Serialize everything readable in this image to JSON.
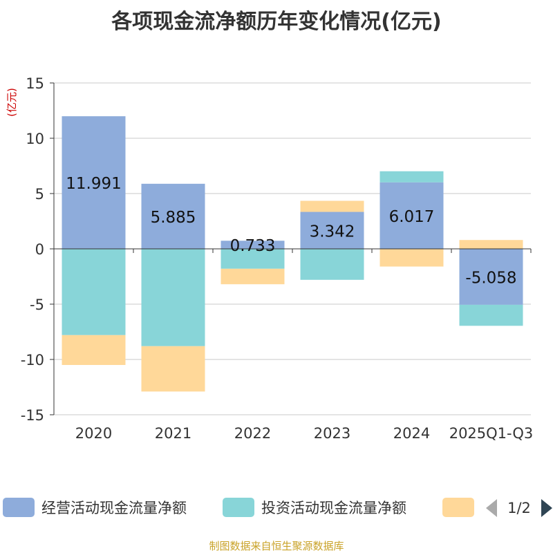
{
  "chart_data": {
    "type": "bar",
    "stacked": true,
    "title": "各项现金流净额历年变化情况(亿元)",
    "ylabel": "(亿元)",
    "xlabel": "",
    "ylim": [
      -15,
      15
    ],
    "yticks": [
      15,
      10,
      5,
      0,
      -5,
      -10,
      -15
    ],
    "ytick_labels": [
      "15",
      "10",
      "5",
      "0",
      "-5",
      "-10",
      "-15"
    ],
    "grid": true,
    "categories": [
      "2020",
      "2021",
      "2022",
      "2023",
      "2024",
      "2025Q1-Q3"
    ],
    "series": [
      {
        "name": "经营活动现金流量净额",
        "color": "#8eacdb",
        "values": [
          11.991,
          5.885,
          0.733,
          3.342,
          6.017,
          -5.058
        ],
        "labels": [
          "11.991",
          "5.885",
          "0.733",
          "3.342",
          "6.017",
          "-5.058"
        ]
      },
      {
        "name": "投资活动现金流量净额",
        "color": "#88d5d8",
        "values": [
          -7.8,
          -8.8,
          -1.8,
          -2.8,
          1.0,
          -1.9
        ]
      },
      {
        "name": "",
        "color": "#ffd899",
        "values": [
          -2.7,
          -4.1,
          -1.4,
          1.0,
          -1.6,
          0.8
        ]
      }
    ],
    "legend": {
      "position": "bottom",
      "page_indicator": "1/2"
    }
  },
  "source_note": "制图数据来自恒生聚源数据库"
}
